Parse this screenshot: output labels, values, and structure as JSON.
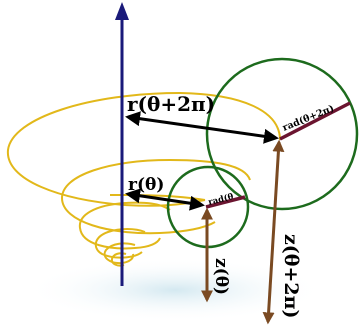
{
  "labels": {
    "r_theta_plus_2pi": "r(θ+2π)",
    "r_theta": "r(θ)",
    "rad_theta_plus_2pi": "rad(θ+2π)",
    "rad_theta": "rad(θ",
    "z_theta": "z(θ)",
    "z_theta_plus_2pi": "z(θ+2π)"
  }
}
